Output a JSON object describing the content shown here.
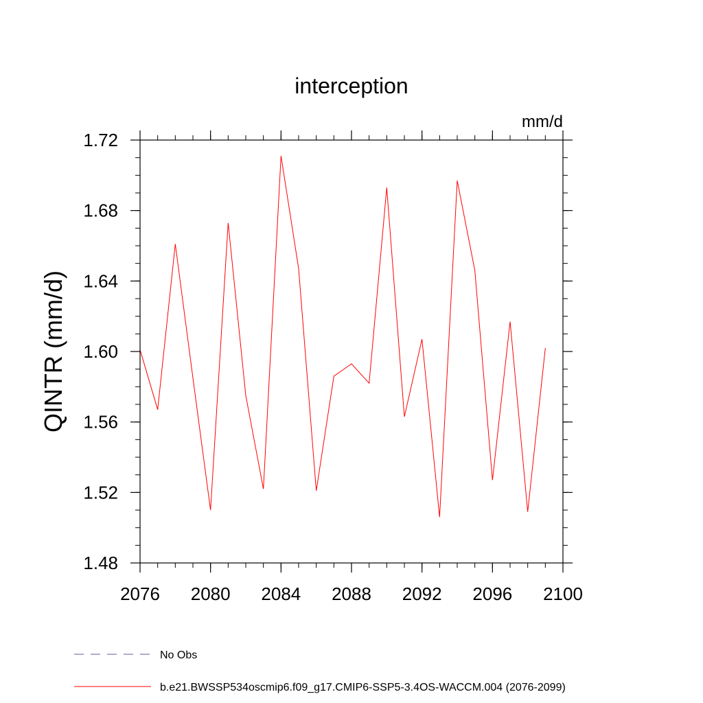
{
  "chart_data": {
    "type": "line",
    "title": "interception",
    "units": "mm/d",
    "ylabel": "QINTR  (mm/d)",
    "xlabel": "",
    "xlim": [
      2076,
      2100
    ],
    "ylim": [
      1.48,
      1.72
    ],
    "x_ticks": [
      "2076",
      "2080",
      "2084",
      "2088",
      "2092",
      "2096",
      "2100"
    ],
    "y_ticks": [
      "1.48",
      "1.52",
      "1.56",
      "1.60",
      "1.64",
      "1.68",
      "1.72"
    ],
    "x_minor_step": 1,
    "y_minor_step": 0.01,
    "grid": false,
    "legend_position": "bottom-left",
    "series": [
      {
        "name": "No Obs",
        "color": "#5a5aa0",
        "dash": "dashed",
        "x": [],
        "values": []
      },
      {
        "name": "b.e21.BWSSP534oscmip6.f09_g17.CMIP6-SSP5-3.4OS-WACCM.004 (2076-2099)",
        "color": "#ff0000",
        "dash": "solid",
        "x": [
          2076,
          2077,
          2078,
          2079,
          2080,
          2081,
          2082,
          2083,
          2084,
          2085,
          2086,
          2087,
          2088,
          2089,
          2090,
          2091,
          2092,
          2093,
          2094,
          2095,
          2096,
          2097,
          2098,
          2099
        ],
        "values": [
          1.601,
          1.567,
          1.661,
          1.585,
          1.51,
          1.673,
          1.575,
          1.522,
          1.711,
          1.647,
          1.521,
          1.586,
          1.593,
          1.582,
          1.693,
          1.563,
          1.607,
          1.506,
          1.697,
          1.646,
          1.527,
          1.617,
          1.509,
          1.602
        ]
      }
    ]
  }
}
